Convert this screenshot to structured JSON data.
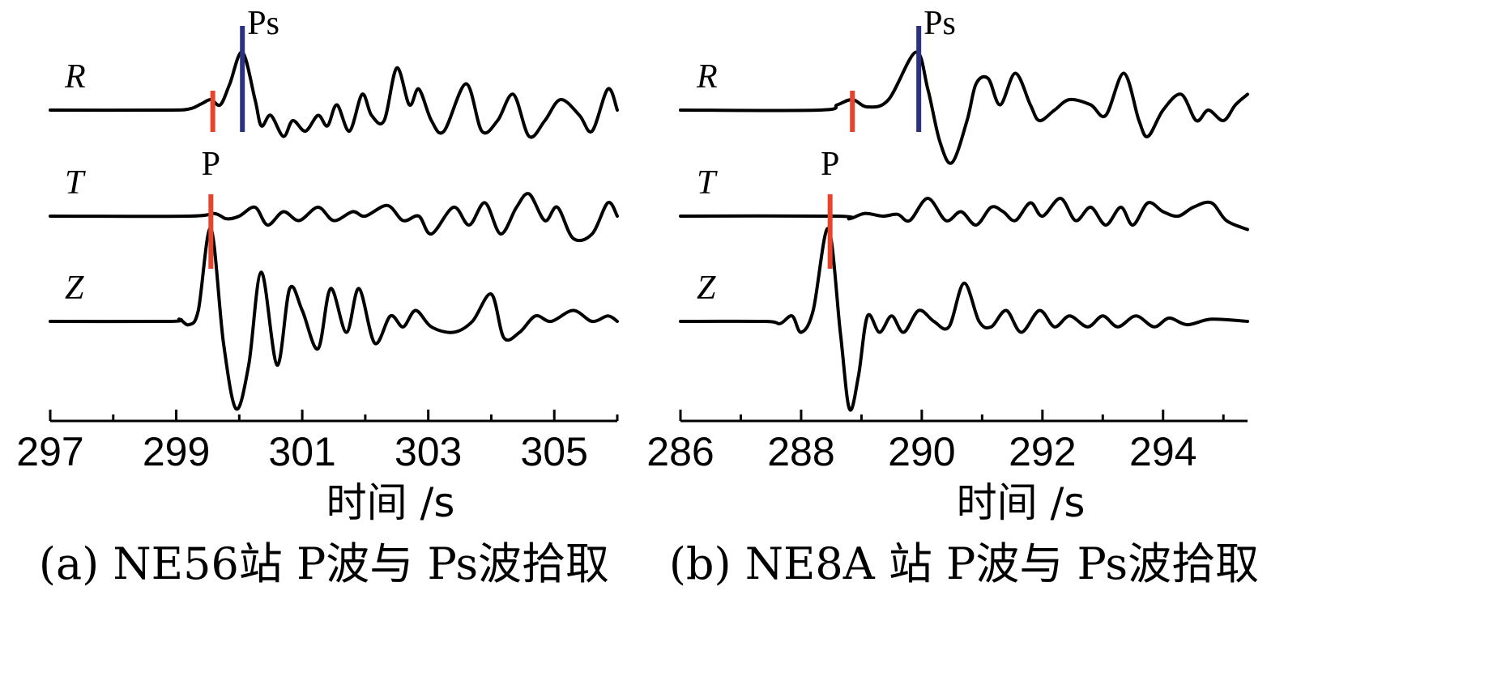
{
  "chart_data": [
    {
      "type": "line",
      "caption": "(a) NE56站 P波与 Ps波拾取",
      "xlabel": "时间 /s",
      "xlim": [
        297,
        306
      ],
      "xticks": [
        297,
        299,
        301,
        303,
        305
      ],
      "traces": [
        {
          "name": "R",
          "points": [
            [
              297,
              0
            ],
            [
              298.8,
              0
            ],
            [
              299.2,
              0.01
            ],
            [
              299.4,
              0.06
            ],
            [
              299.55,
              0.1
            ],
            [
              299.7,
              0.05
            ],
            [
              299.85,
              0.25
            ],
            [
              300.05,
              0.55
            ],
            [
              300.25,
              0.1
            ],
            [
              300.35,
              -0.15
            ],
            [
              300.5,
              -0.05
            ],
            [
              300.7,
              -0.25
            ],
            [
              300.85,
              -0.1
            ],
            [
              301.05,
              -0.2
            ],
            [
              301.25,
              -0.05
            ],
            [
              301.4,
              -0.15
            ],
            [
              301.55,
              0.05
            ],
            [
              301.75,
              -0.2
            ],
            [
              301.95,
              0.15
            ],
            [
              302.1,
              -0.05
            ],
            [
              302.3,
              -0.1
            ],
            [
              302.5,
              0.4
            ],
            [
              302.7,
              0.05
            ],
            [
              302.85,
              0.2
            ],
            [
              303.05,
              -0.1
            ],
            [
              303.25,
              -0.2
            ],
            [
              303.6,
              0.25
            ],
            [
              303.85,
              -0.2
            ],
            [
              304.1,
              -0.1
            ],
            [
              304.35,
              0.15
            ],
            [
              304.6,
              -0.25
            ],
            [
              304.85,
              -0.1
            ],
            [
              305.1,
              0.1
            ],
            [
              305.4,
              -0.05
            ],
            [
              305.6,
              -0.2
            ],
            [
              305.85,
              0.2
            ],
            [
              306,
              0
            ]
          ]
        },
        {
          "name": "T",
          "points": [
            [
              297,
              0
            ],
            [
              299.2,
              0
            ],
            [
              299.6,
              0.03
            ],
            [
              299.8,
              -0.03
            ],
            [
              300.0,
              0
            ],
            [
              300.25,
              0.1
            ],
            [
              300.45,
              -0.1
            ],
            [
              300.7,
              0.05
            ],
            [
              300.95,
              -0.05
            ],
            [
              301.25,
              0.1
            ],
            [
              301.5,
              -0.05
            ],
            [
              301.8,
              0.05
            ],
            [
              302.0,
              0
            ],
            [
              302.35,
              0.12
            ],
            [
              302.6,
              -0.05
            ],
            [
              302.85,
              0
            ],
            [
              303.05,
              -0.2
            ],
            [
              303.4,
              0.1
            ],
            [
              303.65,
              -0.1
            ],
            [
              303.9,
              0.15
            ],
            [
              304.15,
              -0.2
            ],
            [
              304.4,
              0.1
            ],
            [
              304.6,
              0.25
            ],
            [
              304.85,
              -0.05
            ],
            [
              305.05,
              0.1
            ],
            [
              305.3,
              -0.25
            ],
            [
              305.6,
              -0.2
            ],
            [
              305.85,
              0.15
            ],
            [
              306,
              0
            ]
          ]
        },
        {
          "name": "Z",
          "points": [
            [
              297,
              0
            ],
            [
              298.9,
              0
            ],
            [
              299.05,
              0.02
            ],
            [
              299.2,
              -0.03
            ],
            [
              299.35,
              0.1
            ],
            [
              299.55,
              0.85
            ],
            [
              299.75,
              -0.2
            ],
            [
              299.95,
              -0.8
            ],
            [
              300.15,
              -0.4
            ],
            [
              300.35,
              0.45
            ],
            [
              300.6,
              -0.4
            ],
            [
              300.8,
              0.3
            ],
            [
              301.0,
              0.1
            ],
            [
              301.25,
              -0.25
            ],
            [
              301.45,
              0.3
            ],
            [
              301.7,
              -0.1
            ],
            [
              301.9,
              0.3
            ],
            [
              302.15,
              -0.2
            ],
            [
              302.4,
              0.05
            ],
            [
              302.6,
              -0.05
            ],
            [
              302.8,
              0.1
            ],
            [
              303.05,
              -0.05
            ],
            [
              303.4,
              -0.1
            ],
            [
              303.7,
              0
            ],
            [
              304.0,
              0.25
            ],
            [
              304.2,
              -0.15
            ],
            [
              304.45,
              -0.1
            ],
            [
              304.7,
              0.05
            ],
            [
              304.95,
              0
            ],
            [
              305.3,
              0.1
            ],
            [
              305.6,
              0
            ],
            [
              305.85,
              0.05
            ],
            [
              306,
              0
            ]
          ]
        }
      ],
      "picks": [
        {
          "phase": "P",
          "trace": "Z",
          "x": 299.55,
          "color": "#e8432c",
          "label": "P"
        },
        {
          "phase": "P-on-R",
          "trace": "R",
          "x": 299.58,
          "color": "#e8432c",
          "label": ""
        },
        {
          "phase": "Ps",
          "trace": "R",
          "x": 300.05,
          "color": "#2a3280",
          "label": "Ps"
        }
      ]
    },
    {
      "type": "line",
      "caption": "(b) NE8A 站 P波与 Ps波拾取",
      "xlabel": "时间 /s",
      "xlim": [
        286,
        295.4
      ],
      "xticks": [
        286,
        288,
        290,
        292,
        294
      ],
      "traces": [
        {
          "name": "R",
          "points": [
            [
              286,
              0
            ],
            [
              288.3,
              0
            ],
            [
              288.6,
              0.05
            ],
            [
              288.85,
              0.1
            ],
            [
              289.1,
              0.03
            ],
            [
              289.45,
              0.1
            ],
            [
              289.9,
              0.55
            ],
            [
              290.1,
              0.2
            ],
            [
              290.3,
              -0.3
            ],
            [
              290.5,
              -0.5
            ],
            [
              290.75,
              -0.1
            ],
            [
              290.9,
              0.25
            ],
            [
              291.1,
              0.3
            ],
            [
              291.3,
              0.05
            ],
            [
              291.55,
              0.35
            ],
            [
              291.8,
              0.05
            ],
            [
              291.95,
              -0.1
            ],
            [
              292.2,
              0
            ],
            [
              292.45,
              0.1
            ],
            [
              292.8,
              0.05
            ],
            [
              293.05,
              -0.05
            ],
            [
              293.35,
              0.35
            ],
            [
              293.6,
              -0.1
            ],
            [
              293.75,
              -0.25
            ],
            [
              294.0,
              0
            ],
            [
              294.3,
              0.15
            ],
            [
              294.55,
              -0.1
            ],
            [
              294.75,
              0
            ],
            [
              295.0,
              -0.1
            ],
            [
              295.2,
              0.05
            ],
            [
              295.4,
              0.15
            ]
          ]
        },
        {
          "name": "T",
          "points": [
            [
              286,
              0
            ],
            [
              288.6,
              0
            ],
            [
              288.8,
              -0.03
            ],
            [
              289.05,
              0.03
            ],
            [
              289.35,
              0
            ],
            [
              289.6,
              0.02
            ],
            [
              289.8,
              -0.05
            ],
            [
              290.1,
              0.2
            ],
            [
              290.4,
              -0.05
            ],
            [
              290.65,
              0.05
            ],
            [
              290.9,
              -0.1
            ],
            [
              291.15,
              0.1
            ],
            [
              291.35,
              0.05
            ],
            [
              291.55,
              -0.05
            ],
            [
              291.8,
              0.15
            ],
            [
              292.0,
              0
            ],
            [
              292.3,
              0.2
            ],
            [
              292.55,
              -0.05
            ],
            [
              292.8,
              0.1
            ],
            [
              293.05,
              -0.1
            ],
            [
              293.3,
              0.1
            ],
            [
              293.5,
              -0.1
            ],
            [
              293.75,
              0.15
            ],
            [
              294.0,
              0.05
            ],
            [
              294.25,
              0
            ],
            [
              294.5,
              0.1
            ],
            [
              294.8,
              0.15
            ],
            [
              295.05,
              -0.05
            ],
            [
              295.4,
              -0.15
            ]
          ]
        },
        {
          "name": "Z",
          "points": [
            [
              286,
              0
            ],
            [
              287.4,
              0
            ],
            [
              287.65,
              -0.02
            ],
            [
              287.85,
              0.05
            ],
            [
              288.0,
              -0.1
            ],
            [
              288.2,
              0.1
            ],
            [
              288.45,
              0.85
            ],
            [
              288.65,
              -0.1
            ],
            [
              288.8,
              -0.8
            ],
            [
              288.95,
              -0.5
            ],
            [
              289.1,
              0.05
            ],
            [
              289.3,
              -0.1
            ],
            [
              289.5,
              0.05
            ],
            [
              289.7,
              -0.1
            ],
            [
              289.95,
              0.1
            ],
            [
              290.2,
              0
            ],
            [
              290.45,
              -0.05
            ],
            [
              290.7,
              0.35
            ],
            [
              290.95,
              0
            ],
            [
              291.15,
              -0.05
            ],
            [
              291.4,
              0.1
            ],
            [
              291.65,
              -0.1
            ],
            [
              291.95,
              0.1
            ],
            [
              292.2,
              -0.05
            ],
            [
              292.45,
              0.05
            ],
            [
              292.75,
              -0.05
            ],
            [
              293.0,
              0.05
            ],
            [
              293.25,
              -0.05
            ],
            [
              293.55,
              0.05
            ],
            [
              293.85,
              -0.05
            ],
            [
              294.1,
              0.03
            ],
            [
              294.4,
              -0.03
            ],
            [
              294.8,
              0.02
            ],
            [
              295.4,
              0
            ]
          ]
        }
      ],
      "picks": [
        {
          "phase": "P",
          "trace": "Z",
          "x": 288.48,
          "color": "#e8432c",
          "label": "P"
        },
        {
          "phase": "P-on-R",
          "trace": "R",
          "x": 288.85,
          "color": "#e8432c",
          "label": ""
        },
        {
          "phase": "Ps",
          "trace": "R",
          "x": 289.95,
          "color": "#2a3280",
          "label": "Ps"
        }
      ]
    }
  ]
}
